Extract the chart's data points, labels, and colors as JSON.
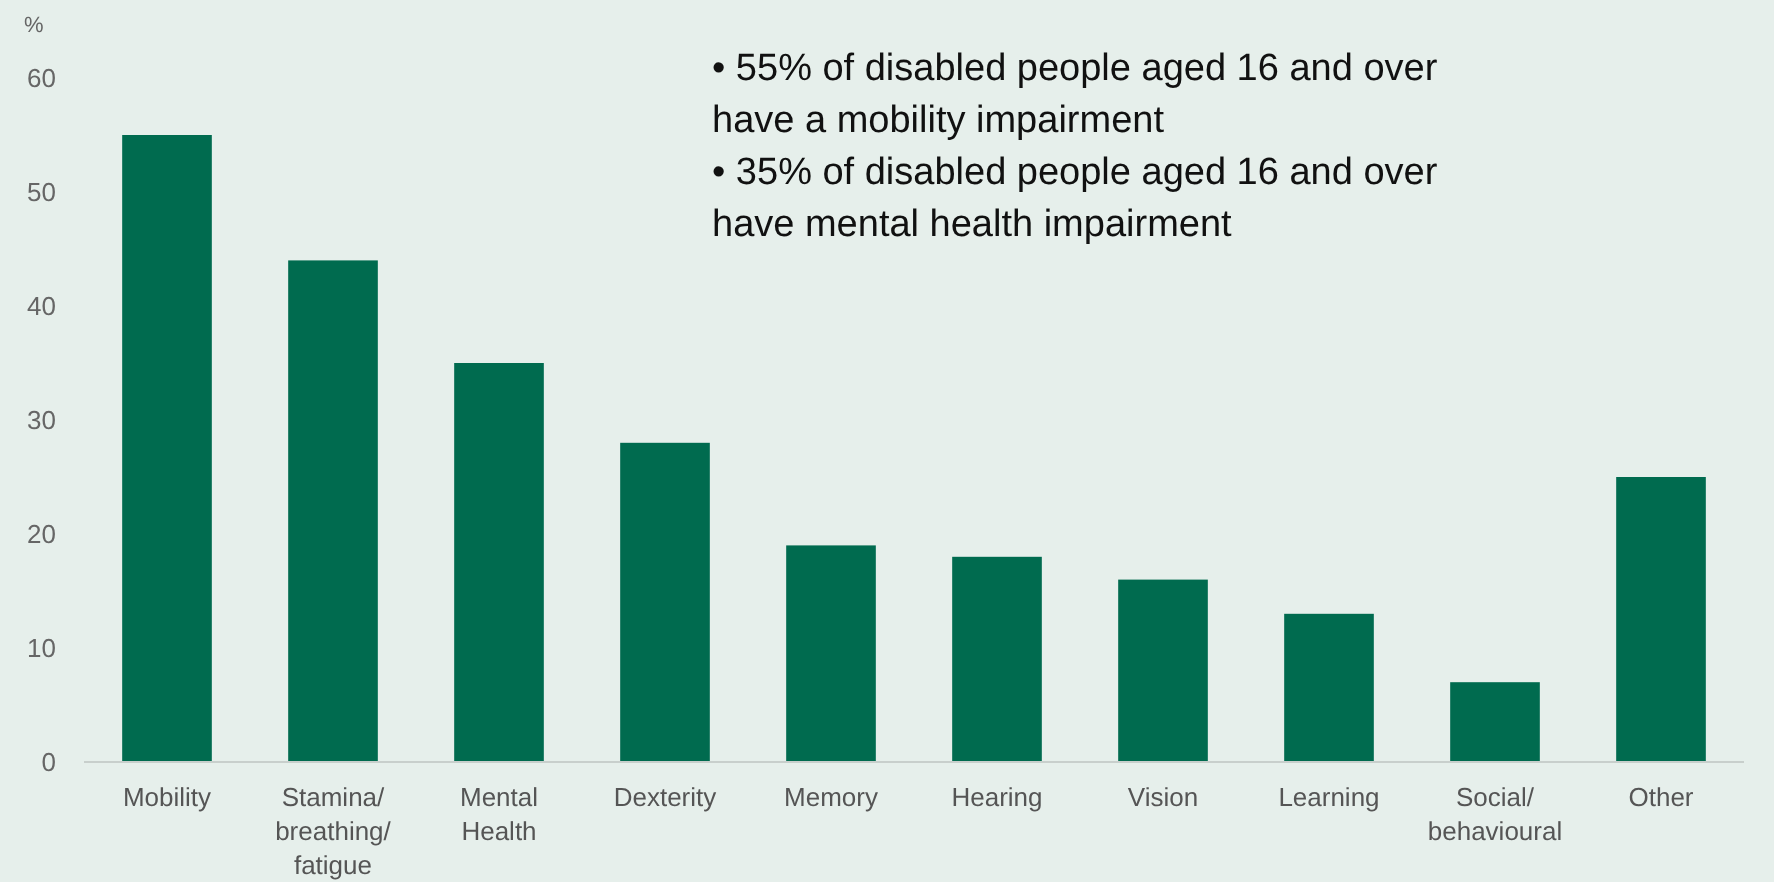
{
  "chart_data": {
    "type": "bar",
    "ylabel": "%",
    "categories": [
      "Mobility",
      "Stamina/ breathing/ fatigue",
      "Mental Health",
      "Dexterity",
      "Memory",
      "Hearing",
      "Vision",
      "Learning",
      "Social/ behavioural",
      "Other"
    ],
    "values": [
      55,
      44,
      35,
      28,
      19,
      18,
      16,
      13,
      7,
      25
    ],
    "color": "#006b4f",
    "ylim": [
      0,
      60
    ],
    "yticks": [
      0,
      10,
      20,
      30,
      40,
      50,
      60
    ],
    "grid": false,
    "annotations": [
      "•    55% of disabled people aged 16 and over have a mobility impairment",
      "•    35% of disabled people aged 16 and over have mental health impairment"
    ]
  }
}
